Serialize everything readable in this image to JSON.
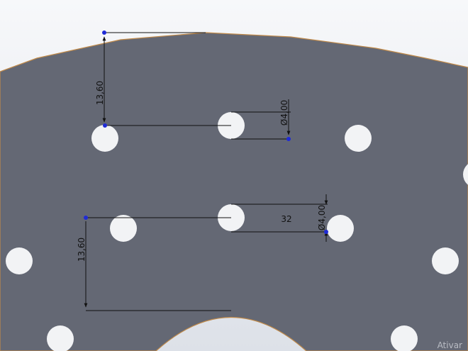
{
  "colors": {
    "background_top": "#f7f8fa",
    "background_bottom": "#dde1e8",
    "part_face": "#646874",
    "part_edge": "#c08a4a",
    "hole_fill": "#f2f3f5",
    "dimension_line": "#111111",
    "sketch_point": "#1f2bd6"
  },
  "dimensions": {
    "vertical_top": "13,60",
    "diameter_top": "Ø4,00",
    "horizontal_mid": "32",
    "diameter_mid": "Ø4,00",
    "vertical_bottom": "13,60"
  },
  "watermark": {
    "text": "Ativar"
  }
}
